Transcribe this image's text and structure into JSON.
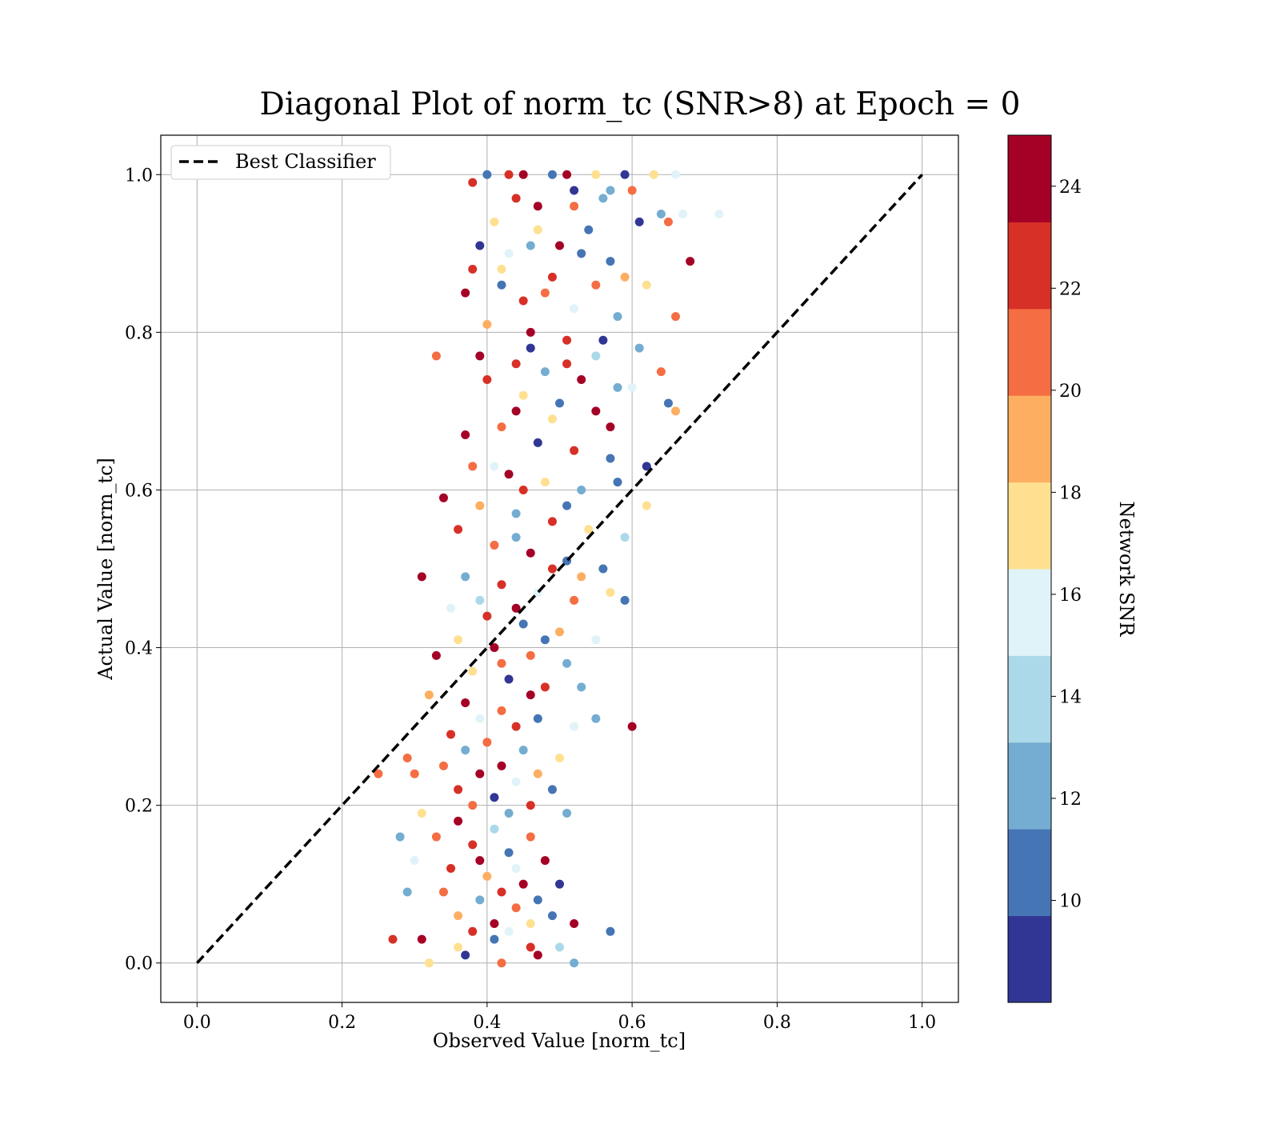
{
  "chart_data": {
    "type": "scatter",
    "title": "Diagonal Plot of norm_tc (SNR>8) at Epoch = 0",
    "xlabel": "Observed Value [norm_tc]",
    "ylabel": "Actual Value [norm_tc]",
    "xlim": [
      -0.05,
      1.05
    ],
    "ylim": [
      -0.05,
      1.05
    ],
    "xticks": [
      0.0,
      0.2,
      0.4,
      0.6,
      0.8,
      1.0
    ],
    "yticks": [
      0.0,
      0.2,
      0.4,
      0.6,
      0.8,
      1.0
    ],
    "xtick_labels": [
      "0.0",
      "0.2",
      "0.4",
      "0.6",
      "0.8",
      "1.0"
    ],
    "ytick_labels": [
      "0.0",
      "0.2",
      "0.4",
      "0.6",
      "0.8",
      "1.0"
    ],
    "grid": true,
    "legend": {
      "position": "upper-left",
      "entries": [
        "Best Classifier"
      ]
    },
    "reference_line": {
      "name": "Best Classifier",
      "style": "dashed",
      "color": "#000000",
      "x": [
        0,
        1
      ],
      "y": [
        0,
        1
      ]
    },
    "colorbar": {
      "label": "Network SNR",
      "range": [
        8,
        25
      ],
      "ticks": [
        10,
        12,
        14,
        16,
        18,
        20,
        22,
        24
      ],
      "tick_labels": [
        "10",
        "12",
        "14",
        "16",
        "18",
        "20",
        "22",
        "24"
      ],
      "colors": [
        "#313695",
        "#4575b4",
        "#74add1",
        "#abd9e9",
        "#e0f3f8",
        "#fee090",
        "#fdae61",
        "#f46d43",
        "#d73027",
        "#a50026"
      ]
    },
    "points": [
      [
        0.4,
        1.0,
        11
      ],
      [
        0.43,
        1.0,
        23
      ],
      [
        0.45,
        1.0,
        24
      ],
      [
        0.49,
        1.0,
        10
      ],
      [
        0.51,
        1.0,
        24
      ],
      [
        0.55,
        1.0,
        18
      ],
      [
        0.59,
        1.0,
        9
      ],
      [
        0.63,
        1.0,
        17
      ],
      [
        0.66,
        1.0,
        16
      ],
      [
        0.44,
        0.97,
        23
      ],
      [
        0.47,
        0.96,
        24
      ],
      [
        0.52,
        0.96,
        20
      ],
      [
        0.56,
        0.97,
        12
      ],
      [
        0.6,
        0.98,
        21
      ],
      [
        0.64,
        0.95,
        12
      ],
      [
        0.67,
        0.95,
        16
      ],
      [
        0.72,
        0.95,
        16
      ],
      [
        0.61,
        0.94,
        9
      ],
      [
        0.65,
        0.94,
        21
      ],
      [
        0.41,
        0.94,
        18
      ],
      [
        0.39,
        0.91,
        9
      ],
      [
        0.43,
        0.9,
        16
      ],
      [
        0.46,
        0.91,
        13
      ],
      [
        0.5,
        0.91,
        24
      ],
      [
        0.53,
        0.9,
        10
      ],
      [
        0.57,
        0.89,
        11
      ],
      [
        0.38,
        0.88,
        22
      ],
      [
        0.42,
        0.88,
        18
      ],
      [
        0.49,
        0.87,
        23
      ],
      [
        0.55,
        0.86,
        20
      ],
      [
        0.59,
        0.87,
        19
      ],
      [
        0.68,
        0.89,
        24
      ],
      [
        0.37,
        0.85,
        24
      ],
      [
        0.45,
        0.84,
        22
      ],
      [
        0.52,
        0.83,
        16
      ],
      [
        0.58,
        0.82,
        13
      ],
      [
        0.66,
        0.82,
        20
      ],
      [
        0.4,
        0.81,
        19
      ],
      [
        0.46,
        0.8,
        24
      ],
      [
        0.51,
        0.79,
        22
      ],
      [
        0.56,
        0.79,
        9
      ],
      [
        0.61,
        0.78,
        13
      ],
      [
        0.33,
        0.77,
        20
      ],
      [
        0.39,
        0.77,
        24
      ],
      [
        0.44,
        0.76,
        22
      ],
      [
        0.48,
        0.75,
        13
      ],
      [
        0.53,
        0.74,
        24
      ],
      [
        0.58,
        0.73,
        12
      ],
      [
        0.64,
        0.75,
        20
      ],
      [
        0.4,
        0.74,
        23
      ],
      [
        0.45,
        0.72,
        17
      ],
      [
        0.5,
        0.71,
        10
      ],
      [
        0.55,
        0.7,
        24
      ],
      [
        0.6,
        0.73,
        16
      ],
      [
        0.65,
        0.71,
        11
      ],
      [
        0.66,
        0.7,
        19
      ],
      [
        0.37,
        0.67,
        24
      ],
      [
        0.42,
        0.68,
        20
      ],
      [
        0.47,
        0.66,
        9
      ],
      [
        0.52,
        0.65,
        22
      ],
      [
        0.57,
        0.64,
        11
      ],
      [
        0.38,
        0.63,
        21
      ],
      [
        0.43,
        0.62,
        24
      ],
      [
        0.48,
        0.61,
        17
      ],
      [
        0.53,
        0.6,
        12
      ],
      [
        0.58,
        0.61,
        10
      ],
      [
        0.62,
        0.63,
        9
      ],
      [
        0.62,
        0.58,
        17
      ],
      [
        0.34,
        0.59,
        24
      ],
      [
        0.39,
        0.58,
        19
      ],
      [
        0.44,
        0.57,
        13
      ],
      [
        0.49,
        0.56,
        22
      ],
      [
        0.54,
        0.55,
        18
      ],
      [
        0.59,
        0.54,
        14
      ],
      [
        0.36,
        0.55,
        23
      ],
      [
        0.41,
        0.53,
        20
      ],
      [
        0.46,
        0.52,
        24
      ],
      [
        0.51,
        0.51,
        11
      ],
      [
        0.56,
        0.5,
        10
      ],
      [
        0.31,
        0.49,
        24
      ],
      [
        0.37,
        0.49,
        12
      ],
      [
        0.42,
        0.48,
        23
      ],
      [
        0.47,
        0.47,
        16
      ],
      [
        0.52,
        0.46,
        21
      ],
      [
        0.57,
        0.47,
        17
      ],
      [
        0.59,
        0.46,
        11
      ],
      [
        0.35,
        0.45,
        15
      ],
      [
        0.4,
        0.44,
        22
      ],
      [
        0.45,
        0.43,
        10
      ],
      [
        0.5,
        0.42,
        19
      ],
      [
        0.55,
        0.41,
        15
      ],
      [
        0.36,
        0.41,
        17
      ],
      [
        0.41,
        0.4,
        24
      ],
      [
        0.46,
        0.39,
        20
      ],
      [
        0.51,
        0.38,
        12
      ],
      [
        0.33,
        0.39,
        24
      ],
      [
        0.38,
        0.37,
        18
      ],
      [
        0.43,
        0.36,
        9
      ],
      [
        0.48,
        0.35,
        22
      ],
      [
        0.53,
        0.35,
        13
      ],
      [
        0.32,
        0.34,
        19
      ],
      [
        0.37,
        0.33,
        24
      ],
      [
        0.42,
        0.32,
        21
      ],
      [
        0.47,
        0.31,
        10
      ],
      [
        0.52,
        0.3,
        16
      ],
      [
        0.55,
        0.31,
        12
      ],
      [
        0.6,
        0.3,
        24
      ],
      [
        0.35,
        0.29,
        22
      ],
      [
        0.4,
        0.28,
        20
      ],
      [
        0.45,
        0.27,
        13
      ],
      [
        0.5,
        0.26,
        18
      ],
      [
        0.29,
        0.26,
        20
      ],
      [
        0.34,
        0.25,
        21
      ],
      [
        0.39,
        0.24,
        24
      ],
      [
        0.44,
        0.23,
        16
      ],
      [
        0.49,
        0.22,
        11
      ],
      [
        0.25,
        0.24,
        21
      ],
      [
        0.3,
        0.24,
        20
      ],
      [
        0.36,
        0.22,
        22
      ],
      [
        0.41,
        0.21,
        9
      ],
      [
        0.46,
        0.2,
        23
      ],
      [
        0.51,
        0.19,
        12
      ],
      [
        0.31,
        0.19,
        18
      ],
      [
        0.36,
        0.18,
        24
      ],
      [
        0.41,
        0.17,
        14
      ],
      [
        0.46,
        0.16,
        21
      ],
      [
        0.28,
        0.16,
        12
      ],
      [
        0.33,
        0.16,
        20
      ],
      [
        0.38,
        0.15,
        23
      ],
      [
        0.43,
        0.14,
        10
      ],
      [
        0.48,
        0.13,
        24
      ],
      [
        0.3,
        0.13,
        16
      ],
      [
        0.35,
        0.12,
        22
      ],
      [
        0.4,
        0.11,
        19
      ],
      [
        0.45,
        0.1,
        24
      ],
      [
        0.5,
        0.1,
        9
      ],
      [
        0.29,
        0.09,
        13
      ],
      [
        0.34,
        0.09,
        21
      ],
      [
        0.39,
        0.08,
        12
      ],
      [
        0.44,
        0.07,
        20
      ],
      [
        0.49,
        0.06,
        10
      ],
      [
        0.36,
        0.06,
        19
      ],
      [
        0.41,
        0.05,
        24
      ],
      [
        0.46,
        0.05,
        17
      ],
      [
        0.52,
        0.05,
        24
      ],
      [
        0.57,
        0.04,
        10
      ],
      [
        0.27,
        0.03,
        22
      ],
      [
        0.31,
        0.03,
        24
      ],
      [
        0.36,
        0.02,
        18
      ],
      [
        0.41,
        0.03,
        11
      ],
      [
        0.46,
        0.02,
        23
      ],
      [
        0.5,
        0.02,
        14
      ],
      [
        0.32,
        0.0,
        17
      ],
      [
        0.37,
        0.01,
        9
      ],
      [
        0.42,
        0.0,
        20
      ],
      [
        0.47,
        0.01,
        24
      ],
      [
        0.52,
        0.0,
        13
      ],
      [
        0.38,
        0.99,
        23
      ],
      [
        0.52,
        0.98,
        9
      ],
      [
        0.57,
        0.98,
        12
      ],
      [
        0.47,
        0.93,
        18
      ],
      [
        0.54,
        0.93,
        10
      ],
      [
        0.42,
        0.86,
        11
      ],
      [
        0.48,
        0.85,
        20
      ],
      [
        0.62,
        0.86,
        17
      ],
      [
        0.46,
        0.78,
        9
      ],
      [
        0.51,
        0.76,
        22
      ],
      [
        0.55,
        0.77,
        14
      ],
      [
        0.44,
        0.7,
        24
      ],
      [
        0.49,
        0.69,
        18
      ],
      [
        0.57,
        0.68,
        24
      ],
      [
        0.41,
        0.63,
        16
      ],
      [
        0.45,
        0.6,
        22
      ],
      [
        0.51,
        0.58,
        10
      ],
      [
        0.44,
        0.54,
        12
      ],
      [
        0.49,
        0.5,
        23
      ],
      [
        0.53,
        0.49,
        19
      ],
      [
        0.39,
        0.46,
        14
      ],
      [
        0.44,
        0.45,
        24
      ],
      [
        0.48,
        0.41,
        11
      ],
      [
        0.42,
        0.38,
        21
      ],
      [
        0.46,
        0.34,
        24
      ],
      [
        0.39,
        0.31,
        16
      ],
      [
        0.44,
        0.3,
        22
      ],
      [
        0.37,
        0.27,
        13
      ],
      [
        0.42,
        0.25,
        24
      ],
      [
        0.47,
        0.24,
        19
      ],
      [
        0.38,
        0.2,
        21
      ],
      [
        0.43,
        0.19,
        12
      ],
      [
        0.39,
        0.13,
        24
      ],
      [
        0.44,
        0.12,
        15
      ],
      [
        0.42,
        0.09,
        22
      ],
      [
        0.47,
        0.08,
        11
      ],
      [
        0.38,
        0.04,
        23
      ],
      [
        0.43,
        0.04,
        16
      ]
    ]
  }
}
